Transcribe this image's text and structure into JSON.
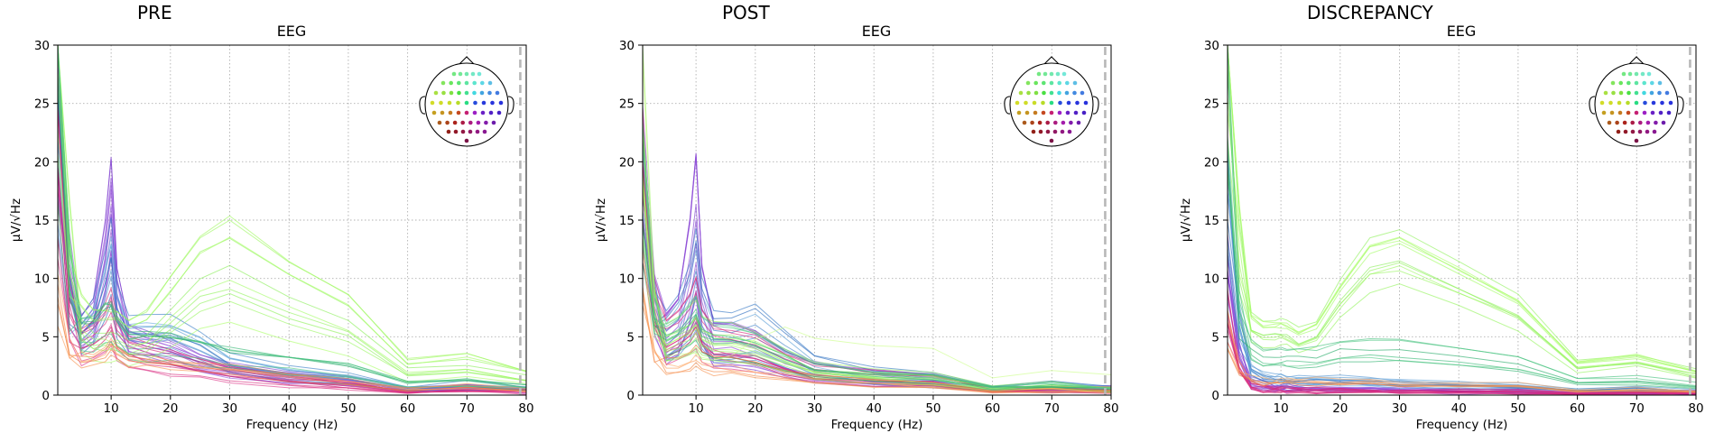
{
  "panels": [
    {
      "title": "PRE"
    },
    {
      "title": "POST"
    },
    {
      "title": "DISCREPANCY"
    }
  ],
  "chart_data": [
    {
      "type": "line",
      "title": "EEG",
      "xlabel": "Frequency (Hz)",
      "ylabel": "µV/√Hz",
      "xlim": [
        1,
        80
      ],
      "ylim": [
        0,
        30
      ],
      "xticks": [
        10,
        20,
        30,
        40,
        50,
        60,
        70,
        80
      ],
      "yticks": [
        0,
        5,
        10,
        15,
        20,
        25,
        30
      ],
      "nyquist_marker_hz": 79,
      "grid": true,
      "channel_inset": "top-right",
      "series_groups": [
        {
          "color_range": [
            "#7733cc",
            "#9955dd"
          ],
          "count": 12,
          "x": [
            1,
            3,
            5,
            7,
            9,
            10,
            11,
            13,
            16,
            20,
            25,
            30,
            40,
            50,
            60,
            70,
            80
          ],
          "y": [
            22,
            9,
            5,
            6,
            11,
            15,
            8,
            4.5,
            4,
            3.5,
            2.6,
            2,
            1.4,
            1.1,
            0.6,
            0.6,
            0.4
          ]
        },
        {
          "color_range": [
            "#2266bb",
            "#66aadd"
          ],
          "count": 10,
          "x": [
            1,
            3,
            5,
            7,
            9,
            10,
            11,
            13,
            16,
            20,
            25,
            30,
            40,
            50,
            60,
            70,
            80
          ],
          "y": [
            20,
            8,
            5,
            6,
            9,
            11,
            7,
            5,
            5,
            5,
            4,
            2.6,
            1.8,
            1.4,
            0.8,
            0.8,
            0.5
          ]
        },
        {
          "color_range": [
            "#cc1166",
            "#dd3388"
          ],
          "count": 9,
          "x": [
            1,
            3,
            5,
            7,
            9,
            10,
            11,
            13,
            16,
            20,
            25,
            30,
            40,
            50,
            60,
            70,
            80
          ],
          "y": [
            18,
            7,
            4.5,
            5,
            6,
            7,
            5,
            4,
            3.5,
            3,
            2.5,
            2,
            1.3,
            0.9,
            0.4,
            0.4,
            0.3
          ]
        },
        {
          "color_range": [
            "#88ee55",
            "#aaff66"
          ],
          "count": 10,
          "x": [
            1,
            3,
            5,
            7,
            9,
            10,
            11,
            13,
            16,
            20,
            25,
            30,
            40,
            50,
            60,
            70,
            80
          ],
          "y": [
            30,
            12,
            6,
            5,
            5,
            5,
            5,
            4.5,
            5,
            7,
            9.5,
            10.5,
            8,
            6,
            3,
            2.5,
            1.5
          ]
        },
        {
          "color_range": [
            "#22aa66",
            "#55cc88"
          ],
          "count": 6,
          "x": [
            1,
            3,
            5,
            7,
            9,
            10,
            11,
            13,
            16,
            20,
            25,
            30,
            40,
            50,
            60,
            70,
            80
          ],
          "y": [
            26,
            9,
            5,
            5,
            6,
            6,
            5,
            4,
            4,
            4,
            3.5,
            3,
            2.5,
            2,
            1.2,
            1,
            0.6
          ]
        },
        {
          "color_range": [
            "#ee7733",
            "#ffaa66"
          ],
          "count": 5,
          "x": [
            1,
            3,
            5,
            7,
            9,
            10,
            11,
            13,
            16,
            20,
            25,
            30,
            40,
            50,
            60,
            70,
            80
          ],
          "y": [
            8,
            3.5,
            2.5,
            2.5,
            3,
            3.5,
            3,
            2.5,
            2.5,
            2.2,
            2,
            1.8,
            1.3,
            1,
            0.6,
            0.6,
            0.4
          ]
        }
      ]
    },
    {
      "type": "line",
      "title": "EEG",
      "xlabel": "Frequency (Hz)",
      "ylabel": "µV/√Hz",
      "xlim": [
        1,
        80
      ],
      "ylim": [
        0,
        30
      ],
      "xticks": [
        10,
        20,
        30,
        40,
        50,
        60,
        70,
        80
      ],
      "yticks": [
        0,
        5,
        10,
        15,
        20,
        25,
        30
      ],
      "nyquist_marker_hz": 79,
      "grid": true,
      "channel_inset": "top-right",
      "series_groups": [
        {
          "color_range": [
            "#7733cc",
            "#9955dd"
          ],
          "count": 12,
          "x": [
            1,
            3,
            5,
            7,
            9,
            10,
            11,
            13,
            16,
            20,
            25,
            30,
            40,
            50,
            60,
            70,
            80
          ],
          "y": [
            19,
            8,
            5,
            6,
            11,
            15,
            8,
            4.5,
            4.5,
            4,
            2.8,
            2,
            1.5,
            1.2,
            0.7,
            0.6,
            0.5
          ]
        },
        {
          "color_range": [
            "#2266bb",
            "#66aadd"
          ],
          "count": 10,
          "x": [
            1,
            3,
            5,
            7,
            9,
            10,
            11,
            13,
            16,
            20,
            25,
            30,
            40,
            50,
            60,
            70,
            80
          ],
          "y": [
            18,
            7.5,
            5,
            6,
            8,
            10,
            7,
            5,
            5,
            5.5,
            4,
            2.4,
            1.6,
            1.4,
            0.8,
            0.8,
            0.5
          ]
        },
        {
          "color_range": [
            "#cc1166",
            "#dd3388"
          ],
          "count": 9,
          "x": [
            1,
            3,
            5,
            7,
            9,
            10,
            11,
            13,
            16,
            20,
            25,
            30,
            40,
            50,
            60,
            70,
            80
          ],
          "y": [
            17,
            6.5,
            4.5,
            5,
            6,
            7,
            5,
            4,
            3.8,
            3.5,
            2.5,
            1.8,
            1.4,
            1.2,
            0.5,
            0.5,
            0.4
          ]
        },
        {
          "color_range": [
            "#88ee55",
            "#aaff66"
          ],
          "count": 10,
          "x": [
            1,
            3,
            5,
            7,
            9,
            10,
            11,
            13,
            16,
            20,
            25,
            30,
            40,
            50,
            60,
            70,
            80
          ],
          "y": [
            20,
            7,
            4.5,
            5,
            5.5,
            6,
            5,
            4.5,
            4.5,
            4,
            3,
            2,
            1.6,
            1.4,
            0.9,
            0.8,
            0.5
          ]
        },
        {
          "color_range": [
            "#22aa66",
            "#55cc88"
          ],
          "count": 6,
          "x": [
            1,
            3,
            5,
            7,
            9,
            10,
            11,
            13,
            16,
            20,
            25,
            30,
            40,
            50,
            60,
            70,
            80
          ],
          "y": [
            19,
            7,
            4.5,
            5,
            6,
            6.5,
            5,
            4.5,
            4.5,
            4,
            3,
            2,
            1.6,
            1.4,
            0.8,
            0.8,
            0.5
          ]
        },
        {
          "color_range": [
            "#ee7733",
            "#ffaa66"
          ],
          "count": 5,
          "x": [
            1,
            3,
            5,
            7,
            9,
            10,
            11,
            13,
            16,
            20,
            25,
            30,
            40,
            50,
            60,
            70,
            80
          ],
          "y": [
            10,
            4,
            3,
            3,
            3.5,
            4,
            3.5,
            3,
            3,
            2.5,
            2,
            1.5,
            1.2,
            1,
            0.5,
            0.5,
            0.4
          ]
        },
        {
          "color_range": [
            "#ccff88",
            "#ccff88"
          ],
          "count": 1,
          "x": [
            1,
            3,
            5,
            7,
            9,
            10,
            11,
            13,
            16,
            20,
            25,
            30,
            40,
            50,
            60,
            70,
            80
          ],
          "y": [
            22,
            8,
            5,
            5,
            5,
            5.5,
            5,
            4.5,
            5,
            7,
            8.5,
            7,
            6.5,
            6,
            3,
            3,
            2.5
          ]
        }
      ]
    },
    {
      "type": "line",
      "title": "EEG",
      "xlabel": "Frequency (Hz)",
      "ylabel": "µV/√Hz",
      "xlim": [
        1,
        80
      ],
      "ylim": [
        0,
        30
      ],
      "xticks": [
        10,
        20,
        30,
        40,
        50,
        60,
        70,
        80
      ],
      "yticks": [
        0,
        5,
        10,
        15,
        20,
        25,
        30
      ],
      "nyquist_marker_hz": 79,
      "grid": true,
      "channel_inset": "top-right",
      "series_groups": [
        {
          "color_range": [
            "#7733cc",
            "#9955dd"
          ],
          "count": 12,
          "x": [
            1,
            3,
            5,
            7,
            9,
            10,
            11,
            13,
            16,
            20,
            25,
            30,
            40,
            50,
            60,
            70,
            80
          ],
          "y": [
            10,
            3,
            1,
            0.8,
            0.6,
            0.6,
            0.6,
            0.5,
            0.5,
            0.5,
            0.5,
            0.4,
            0.3,
            0.3,
            0.2,
            0.2,
            0.2
          ]
        },
        {
          "color_range": [
            "#2266bb",
            "#66aadd"
          ],
          "count": 10,
          "x": [
            1,
            3,
            5,
            7,
            9,
            10,
            11,
            13,
            16,
            20,
            25,
            30,
            40,
            50,
            60,
            70,
            80
          ],
          "y": [
            14,
            5,
            2,
            1.5,
            1.3,
            1.3,
            1.2,
            1.2,
            1.2,
            1.2,
            1.1,
            1,
            0.8,
            0.7,
            0.5,
            0.5,
            0.3
          ]
        },
        {
          "color_range": [
            "#cc1166",
            "#dd3388"
          ],
          "count": 9,
          "x": [
            1,
            3,
            5,
            7,
            9,
            10,
            11,
            13,
            16,
            20,
            25,
            30,
            40,
            50,
            60,
            70,
            80
          ],
          "y": [
            6,
            2,
            0.8,
            0.6,
            0.5,
            0.5,
            0.5,
            0.4,
            0.4,
            0.4,
            0.4,
            0.3,
            0.3,
            0.3,
            0.2,
            0.2,
            0.2
          ]
        },
        {
          "color_range": [
            "#88ee55",
            "#aaff66"
          ],
          "count": 10,
          "x": [
            1,
            3,
            5,
            7,
            9,
            10,
            11,
            13,
            16,
            20,
            25,
            30,
            40,
            50,
            60,
            70,
            80
          ],
          "y": [
            30,
            14,
            5,
            4.5,
            4.5,
            4.5,
            4.5,
            4,
            4.5,
            7,
            9.5,
            10,
            8,
            6,
            3,
            2.5,
            1.5
          ]
        },
        {
          "color_range": [
            "#22aa66",
            "#55cc88"
          ],
          "count": 6,
          "x": [
            1,
            3,
            5,
            7,
            9,
            10,
            11,
            13,
            16,
            20,
            25,
            30,
            40,
            50,
            60,
            70,
            80
          ],
          "y": [
            24,
            8,
            3.5,
            3,
            3,
            3,
            3,
            3,
            3,
            3.5,
            3.5,
            3.5,
            3,
            2.5,
            1.5,
            1.2,
            0.7
          ]
        },
        {
          "color_range": [
            "#ee7733",
            "#ffaa66"
          ],
          "count": 5,
          "x": [
            1,
            3,
            5,
            7,
            9,
            10,
            11,
            13,
            16,
            20,
            25,
            30,
            40,
            50,
            60,
            70,
            80
          ],
          "y": [
            5,
            2,
            1.2,
            1,
            1,
            1,
            1,
            1,
            1,
            1,
            1,
            0.9,
            0.8,
            0.7,
            0.5,
            0.4,
            0.3
          ]
        }
      ]
    }
  ]
}
